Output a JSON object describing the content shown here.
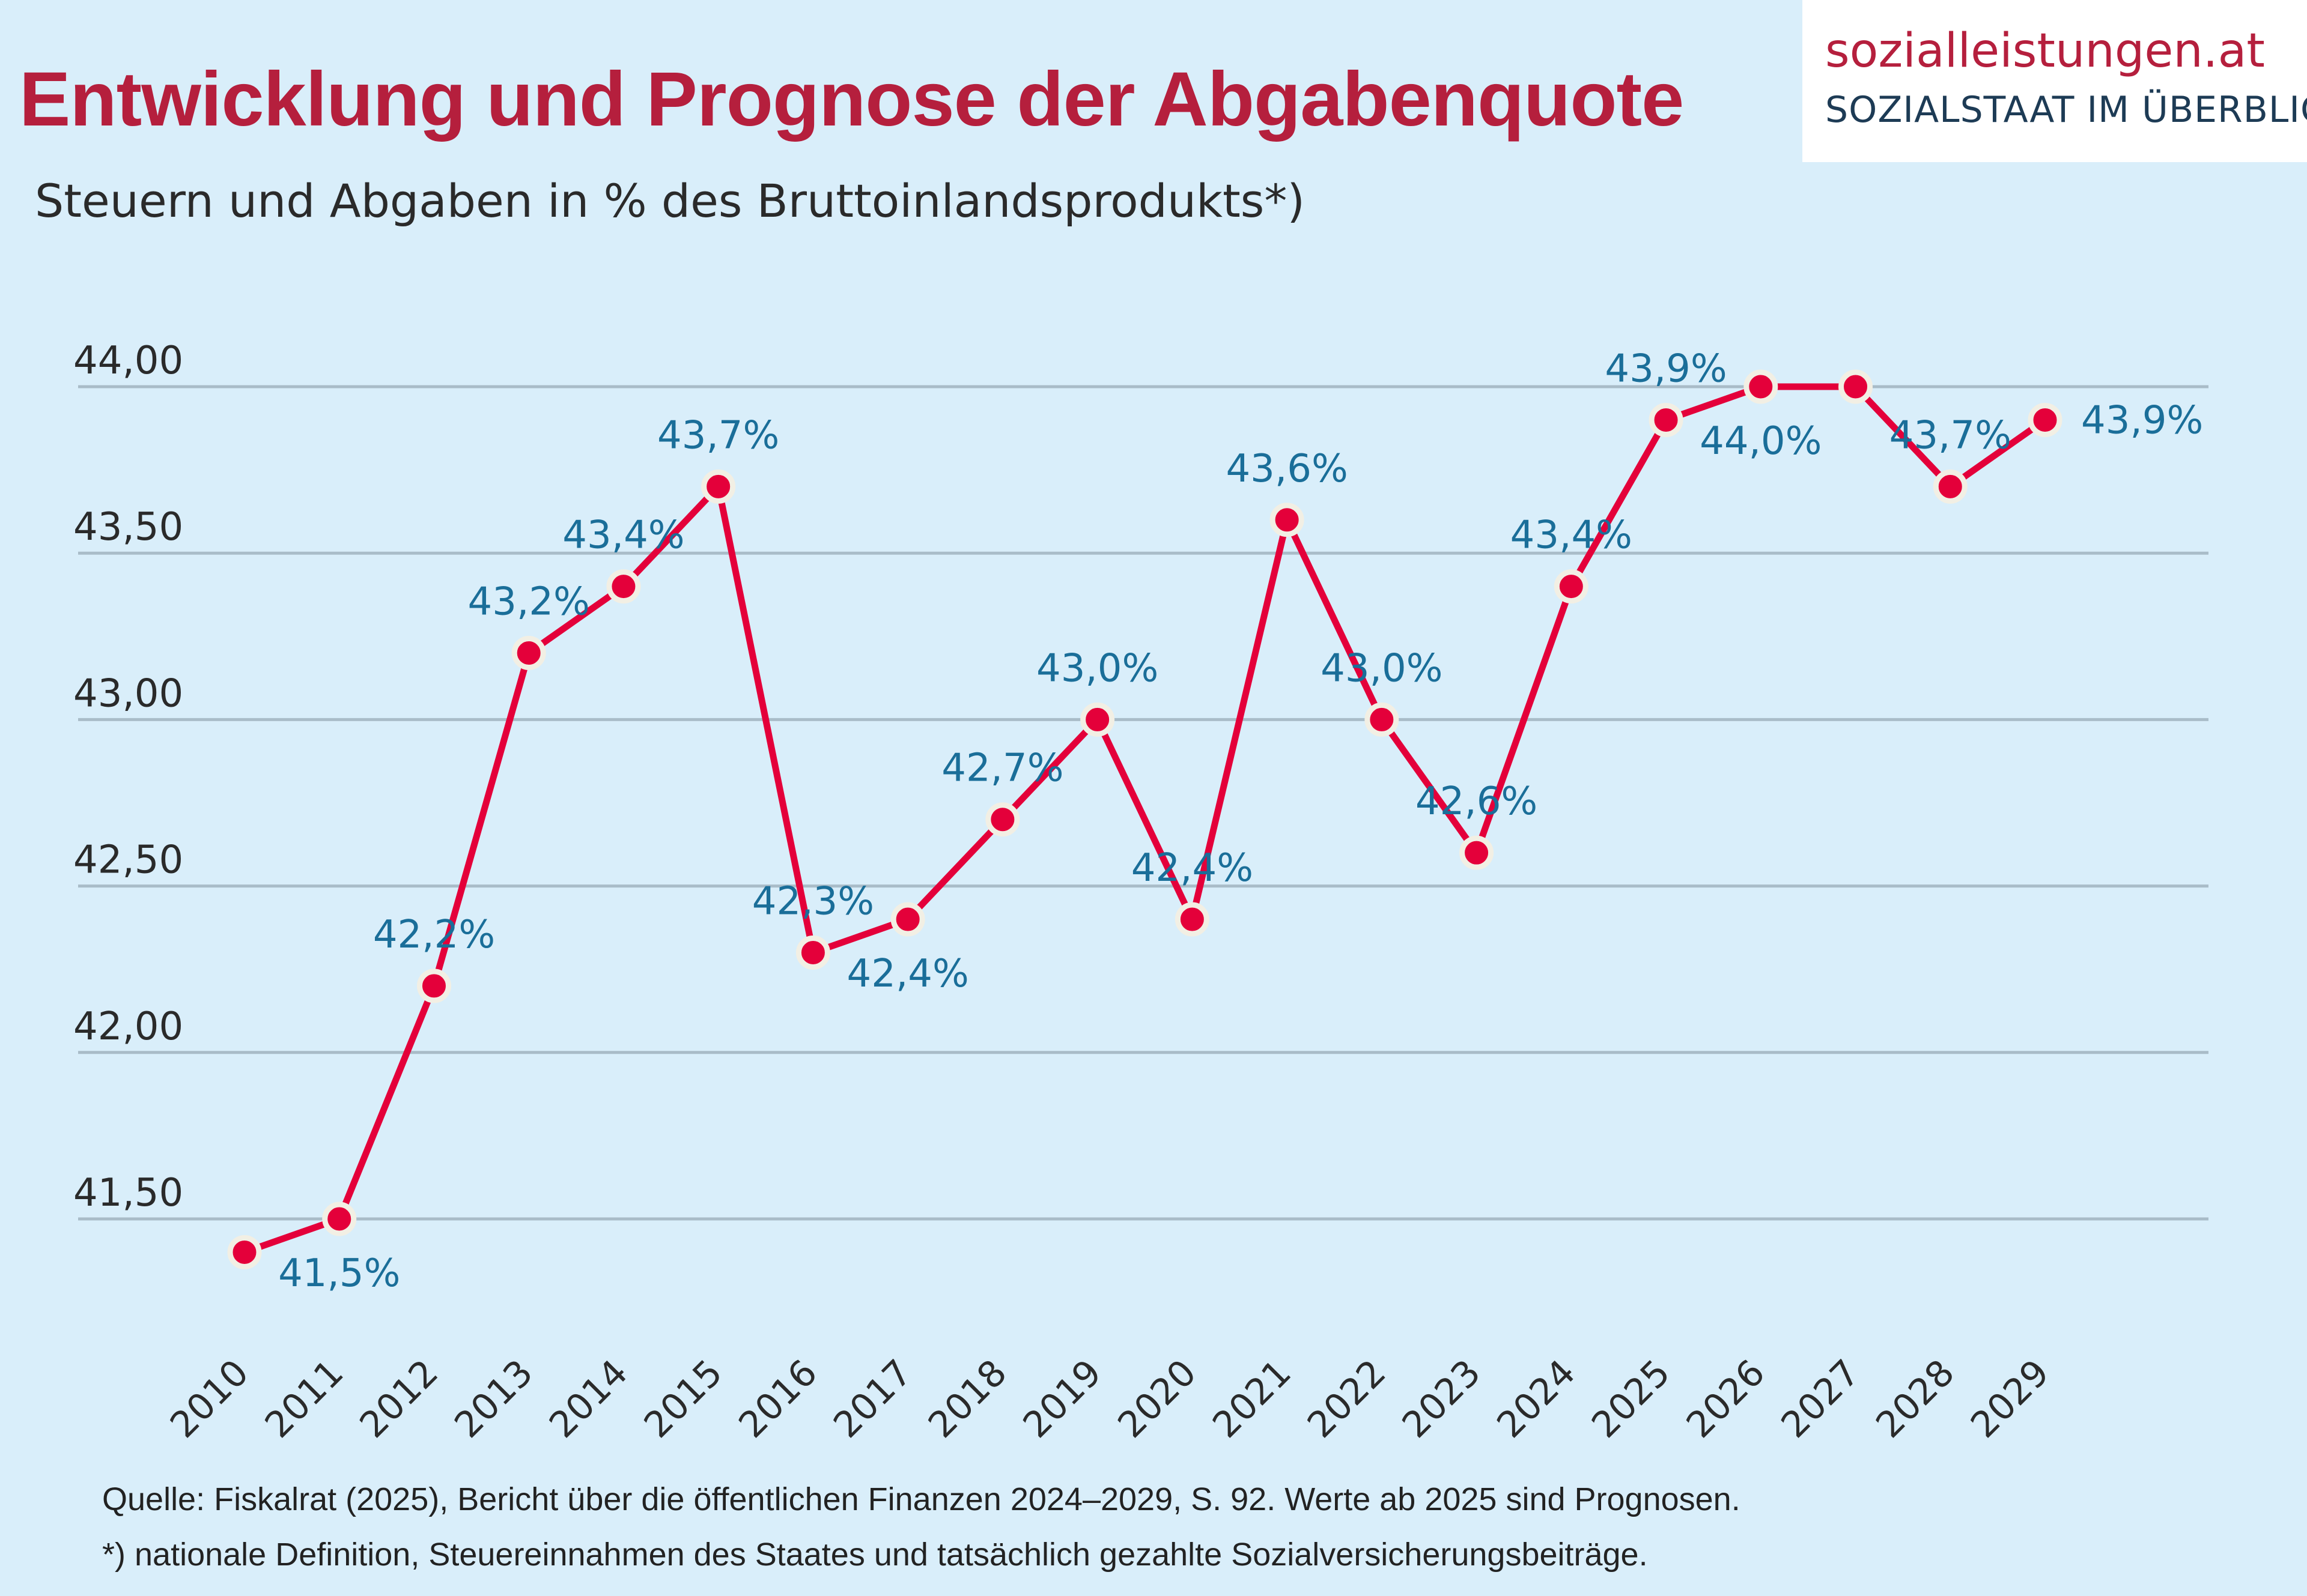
{
  "header": {
    "title": "Entwicklung und Prognose der Abgabenquote",
    "subtitle": "Steuern und Abgaben in % des Bruttoinlandsprodukts*)"
  },
  "logo": {
    "main": "sozialleistungen.at",
    "sub": "SOZIALSTAAT IM ÜBERBLICK"
  },
  "footer": {
    "source": "Quelle: Fiskalrat (2025), Bericht über die öffentlichen Finanzen 2024–2029, S. 92. Werte ab 2025 sind Prognosen.",
    "note": "*) nationale Definition, Steuereinnahmen des Staates und tatsächlich gezahlte Sozialversicherungsbeiträge."
  },
  "colors": {
    "line": "#E4003A",
    "marker_outline": "#F2EFE4",
    "label": "#1A6E99",
    "grid": "#A9BCC8",
    "background": "#D9EEFA",
    "title": "#B51F3D"
  },
  "chart_data": {
    "type": "line",
    "title": "Entwicklung und Prognose der Abgabenquote",
    "subtitle": "Steuern und Abgaben in % des Bruttoinlandsprodukts*)",
    "xlabel": "",
    "ylabel": "",
    "ylim": [
      41.5,
      44.0
    ],
    "yticks": [
      "41,50",
      "42,00",
      "42,50",
      "43,00",
      "43,50",
      "44,00"
    ],
    "ytick_values": [
      41.5,
      42.0,
      42.5,
      43.0,
      43.5,
      44.0
    ],
    "grid": true,
    "categories": [
      "2010",
      "2011",
      "2012",
      "2013",
      "2014",
      "2015",
      "2016",
      "2017",
      "2018",
      "2019",
      "2020",
      "2021",
      "2022",
      "2023",
      "2024",
      "2025",
      "2026",
      "2027",
      "2028",
      "2029"
    ],
    "values": [
      41.4,
      41.5,
      42.2,
      43.2,
      43.4,
      43.7,
      42.3,
      42.4,
      42.7,
      43.0,
      42.4,
      43.6,
      43.0,
      42.6,
      43.4,
      43.9,
      44.0,
      44.0,
      43.7,
      43.9
    ],
    "data_labels": [
      "",
      "41,5%",
      "42,2%",
      "43,2%",
      "43,4%",
      "43,7%",
      "42,3%",
      "42,4%",
      "42,7%",
      "43,0%",
      "42,4%",
      "43,6%",
      "43,0%",
      "42,6%",
      "43,4%",
      "43,9%",
      "44,0%",
      "",
      "43,7%",
      "43,9%"
    ]
  }
}
